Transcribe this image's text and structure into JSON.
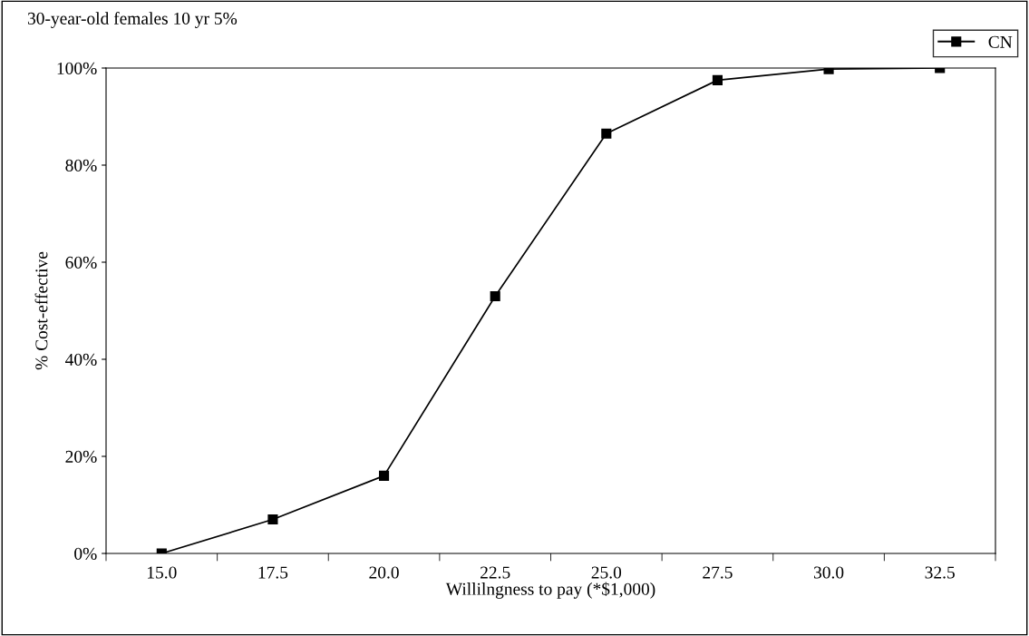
{
  "chart_data": {
    "type": "line",
    "title": "30-year-old females 10 yr 5%",
    "xlabel": "Willilngness to pay (*$1,000)",
    "ylabel": "% Cost-effective",
    "categories": [
      "15.0",
      "17.5",
      "20.0",
      "22.5",
      "25.0",
      "27.5",
      "30.0",
      "32.5"
    ],
    "series": [
      {
        "name": "CN",
        "color": "#000000",
        "values": [
          0,
          7,
          16,
          53,
          86.5,
          97.5,
          99.8,
          100
        ]
      }
    ],
    "ylim": [
      0,
      100
    ],
    "yticks": [
      {
        "value": 0,
        "label": "0%"
      },
      {
        "value": 20,
        "label": "20%"
      },
      {
        "value": 40,
        "label": "40%"
      },
      {
        "value": 60,
        "label": "60%"
      },
      {
        "value": 80,
        "label": "80%"
      },
      {
        "value": 100,
        "label": "100%"
      }
    ],
    "marker": "square",
    "line_style": "solid",
    "grid": false,
    "legend": "top right"
  }
}
